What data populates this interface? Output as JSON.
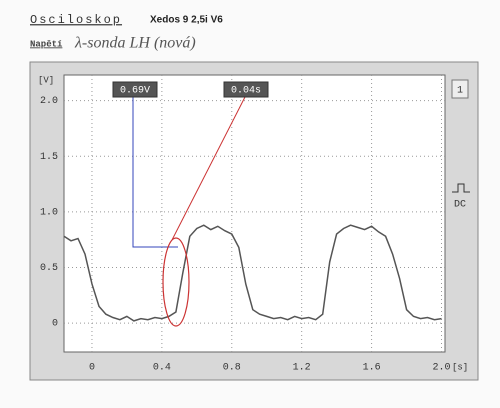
{
  "header": {
    "title": "Osciloskop",
    "vehicle": "Xedos 9 2,5i V6",
    "mode": "Napětí",
    "note": "λ-sonda LH (nová)"
  },
  "chart_data": {
    "type": "line",
    "x_label": "[s]",
    "y_label": "[V]",
    "annotations": [
      "0.69V",
      "0.04s"
    ],
    "indicators": [
      "1",
      "DC"
    ],
    "xlim": [
      -0.16,
      2.02
    ],
    "ylim": [
      -0.26,
      2.23
    ],
    "xticks": [
      0,
      0.4,
      0.8,
      1.2,
      1.6,
      {
        "value": 2,
        "label": "2.0"
      }
    ],
    "yticks": [
      0,
      0.5,
      {
        "value": 1,
        "label": "1.0"
      },
      1.5,
      {
        "value": 2,
        "label": "2.0"
      }
    ],
    "grid": true,
    "series": [
      {
        "color": "#555555",
        "x": [
          -0.16,
          -0.12,
          -0.08,
          -0.04,
          0,
          0.04,
          0.08,
          0.12,
          0.16,
          0.2,
          0.24,
          0.28,
          0.32,
          0.36,
          0.4,
          0.44,
          0.48,
          0.52,
          0.56,
          0.6,
          0.64,
          0.68,
          0.72,
          0.76,
          0.8,
          0.84,
          0.88,
          0.92,
          0.96,
          1,
          1.04,
          1.08,
          1.12,
          1.16,
          1.2,
          1.24,
          1.28,
          1.32,
          1.36,
          1.4,
          1.44,
          1.48,
          1.52,
          1.56,
          1.6,
          1.64,
          1.68,
          1.72,
          1.76,
          1.8,
          1.84,
          1.88,
          1.92,
          1.96,
          2
        ],
        "values": [
          0.78,
          0.74,
          0.76,
          0.62,
          0.35,
          0.15,
          0.08,
          0.05,
          0.03,
          0.06,
          0.02,
          0.04,
          0.03,
          0.05,
          0.04,
          0.06,
          0.1,
          0.45,
          0.78,
          0.85,
          0.88,
          0.84,
          0.87,
          0.83,
          0.8,
          0.68,
          0.35,
          0.12,
          0.08,
          0.06,
          0.04,
          0.05,
          0.03,
          0.06,
          0.04,
          0.05,
          0.03,
          0.08,
          0.55,
          0.8,
          0.85,
          0.88,
          0.86,
          0.84,
          0.87,
          0.82,
          0.78,
          0.62,
          0.4,
          0.12,
          0.06,
          0.04,
          0.05,
          0.03,
          0.04
        ]
      }
    ]
  }
}
